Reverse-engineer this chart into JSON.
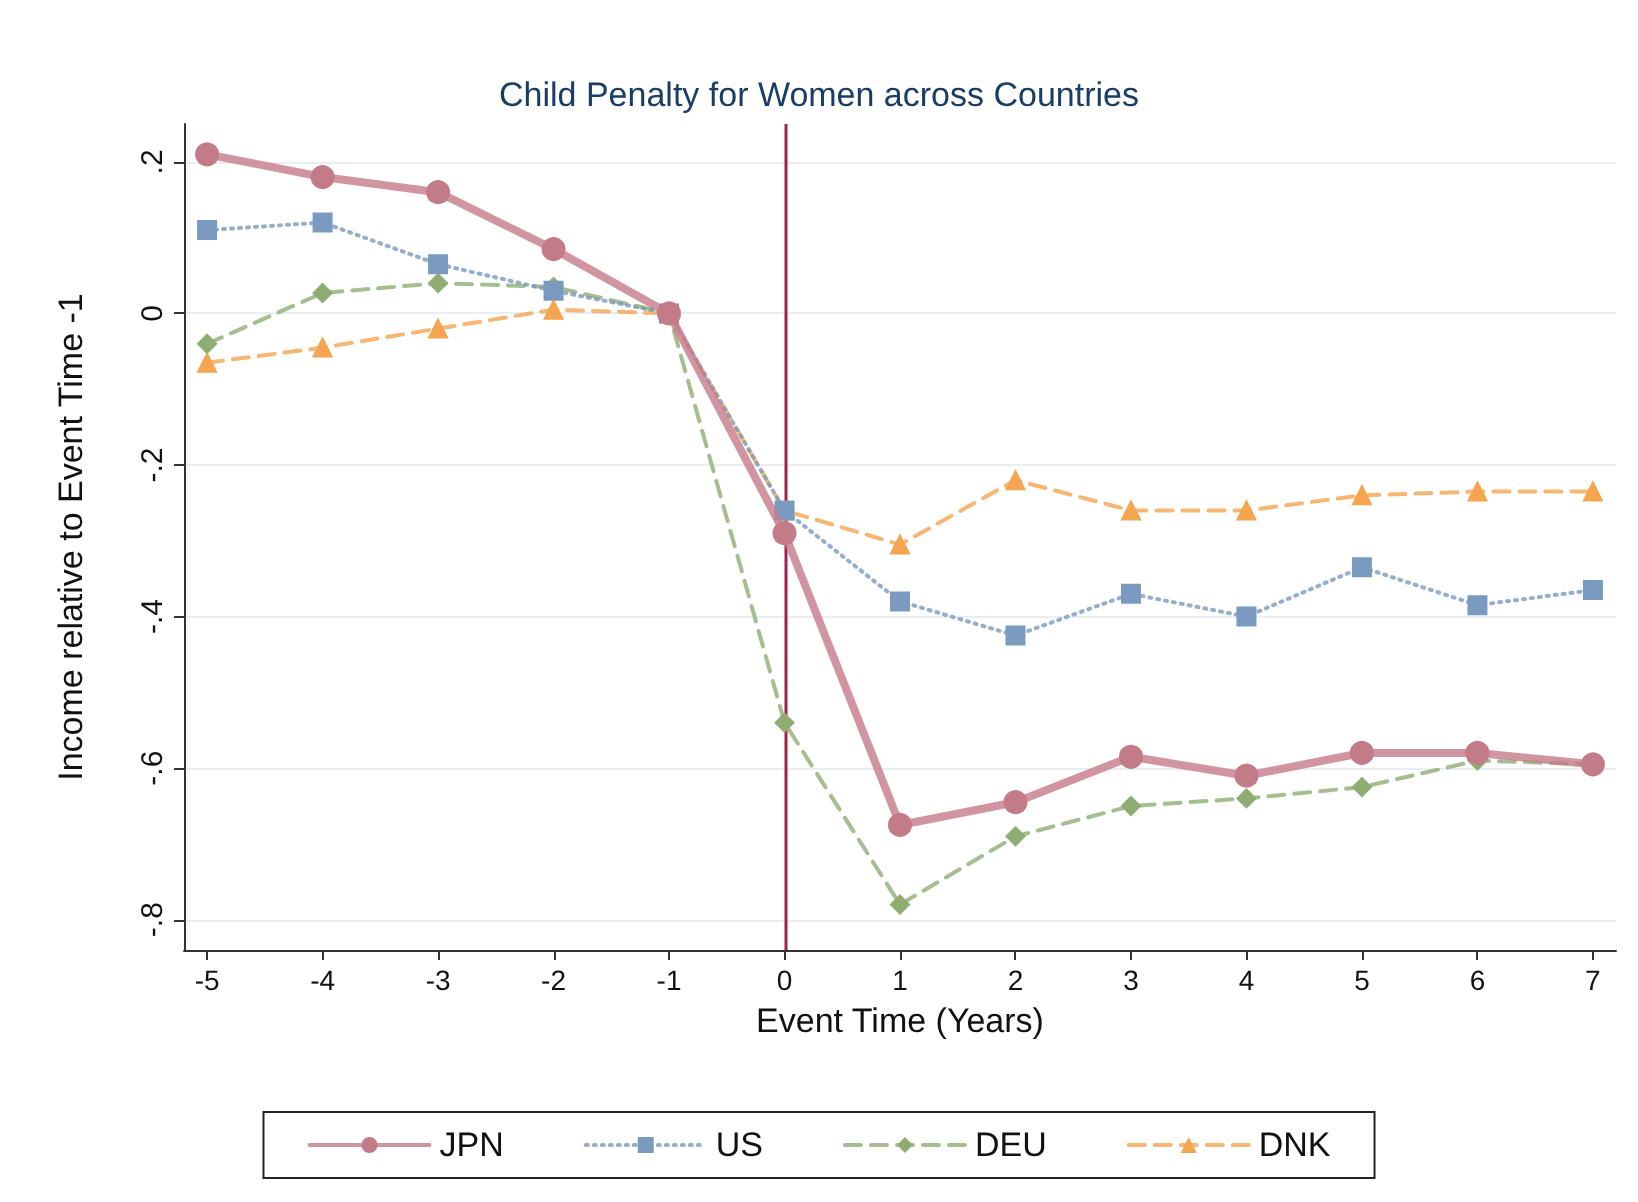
{
  "chart_data": {
    "type": "line",
    "title": "Child Penalty for Women across Countries",
    "xlabel": "Event Time (Years)",
    "ylabel": "Income relative to Event Time -1",
    "x": [
      -5,
      -4,
      -3,
      -2,
      -1,
      0,
      1,
      2,
      3,
      4,
      5,
      6,
      7
    ],
    "series": [
      {
        "name": "JPN",
        "color": "#c47b88",
        "marker": "circle",
        "line_style": "solid",
        "values": [
          0.21,
          0.18,
          0.16,
          0.085,
          0,
          -0.29,
          -0.675,
          -0.645,
          -0.585,
          -0.61,
          -0.58,
          -0.58,
          -0.595
        ]
      },
      {
        "name": "US",
        "color": "#7a9abf",
        "marker": "square",
        "line_style": "dotted",
        "values": [
          0.11,
          0.12,
          0.065,
          0.03,
          0,
          -0.26,
          -0.38,
          -0.425,
          -0.37,
          -0.4,
          -0.335,
          -0.385,
          -0.365
        ]
      },
      {
        "name": "DEU",
        "color": "#8fad73",
        "marker": "diamond",
        "line_style": "dashed",
        "values": [
          -0.04,
          0.027,
          0.04,
          0.035,
          0,
          -0.54,
          -0.78,
          -0.69,
          -0.65,
          -0.64,
          -0.625,
          -0.59,
          -0.595
        ]
      },
      {
        "name": "DNK",
        "color": "#f5a450",
        "marker": "triangle",
        "line_style": "dashed",
        "values": [
          -0.065,
          -0.045,
          -0.02,
          0.005,
          0,
          -0.26,
          -0.305,
          -0.22,
          -0.26,
          -0.26,
          -0.24,
          -0.235,
          -0.235
        ]
      }
    ],
    "xlim": [
      -5.2,
      7.2
    ],
    "xticks": [
      -5,
      -4,
      -3,
      -2,
      -1,
      0,
      1,
      2,
      3,
      4,
      5,
      6,
      7
    ],
    "ylim": [
      -0.84,
      0.25
    ],
    "yticks": [
      {
        "value": -0.8,
        "label": "-.8"
      },
      {
        "value": -0.6,
        "label": "-.6"
      },
      {
        "value": -0.4,
        "label": "-.4"
      },
      {
        "value": -0.2,
        "label": "-.2"
      },
      {
        "value": 0,
        "label": "0"
      },
      {
        "value": 0.2,
        "label": ".2"
      }
    ],
    "ref_lines": [
      {
        "axis": "x",
        "value": 0,
        "color": "#a0204a"
      }
    ],
    "grid": "y",
    "legend": "bottom"
  }
}
